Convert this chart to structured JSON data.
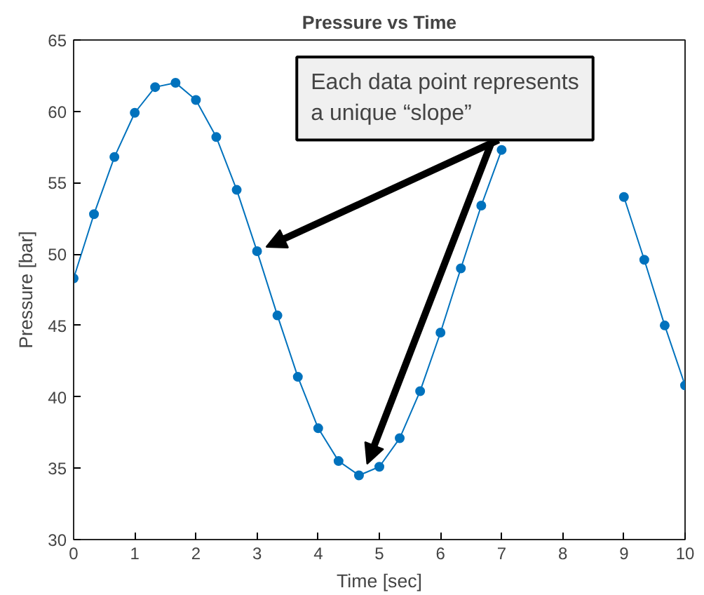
{
  "chart_data": {
    "type": "line",
    "title": "Pressure vs Time",
    "xlabel": "Time [sec]",
    "ylabel": "Pressure [bar]",
    "x": [
      0,
      0.333,
      0.667,
      1,
      1.333,
      1.667,
      2,
      2.333,
      2.667,
      3,
      3.333,
      3.667,
      4,
      4.333,
      4.667,
      5,
      5.333,
      5.667,
      6,
      6.333,
      6.667,
      7,
      7.333,
      7.667,
      8,
      8.333,
      8.667,
      9,
      9.333,
      9.667,
      10
    ],
    "series": [
      {
        "color": "#0072bd",
        "values": [
          48.3,
          52.8,
          56.8,
          59.9,
          61.7,
          62.0,
          60.8,
          58.2,
          54.5,
          50.2,
          45.7,
          41.4,
          37.8,
          35.5,
          34.5,
          35.1,
          37.1,
          40.4,
          44.5,
          49.0,
          53.4,
          57.3,
          null,
          null,
          null,
          null,
          null,
          54.0,
          49.6,
          45.0,
          40.8
        ]
      }
    ],
    "xlim": [
      0,
      10
    ],
    "ylim": [
      30,
      65
    ],
    "xticks": [
      0,
      1,
      2,
      3,
      4,
      5,
      6,
      7,
      8,
      9,
      10
    ],
    "yticks": [
      30,
      35,
      40,
      45,
      50,
      55,
      60,
      65
    ],
    "grid": false,
    "marker": "circle",
    "line_style": "solid",
    "annotations": [
      "Each data point represents\na unique “slope”"
    ]
  }
}
